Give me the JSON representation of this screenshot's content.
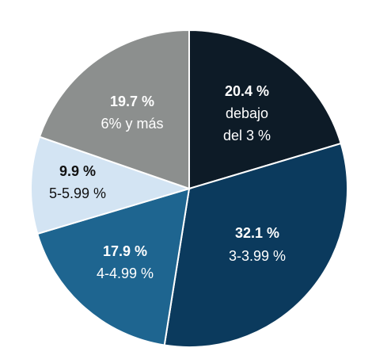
{
  "chart_data": {
    "type": "pie",
    "title": "",
    "slices": [
      {
        "percent_label": "20.4 %",
        "category_lines": [
          "debajo",
          "del 3 %"
        ],
        "value": 20.4,
        "color": "#0d1b27",
        "text_color": "#ffffff"
      },
      {
        "percent_label": "32.1 %",
        "category_lines": [
          "3-3.99 %"
        ],
        "value": 32.1,
        "color": "#0b3a5d",
        "text_color": "#ffffff"
      },
      {
        "percent_label": "17.9 %",
        "category_lines": [
          "4-4.99 %"
        ],
        "value": 17.9,
        "color": "#1e6590",
        "text_color": "#ffffff"
      },
      {
        "percent_label": "9.9 %",
        "category_lines": [
          "5-5.99 %"
        ],
        "value": 9.9,
        "color": "#d3e4f3",
        "text_color": "#111111"
      },
      {
        "percent_label": "19.7 %",
        "category_lines": [
          "6% y más"
        ],
        "value": 19.7,
        "color": "#8c8f8e",
        "text_color": "#ffffff"
      }
    ]
  }
}
